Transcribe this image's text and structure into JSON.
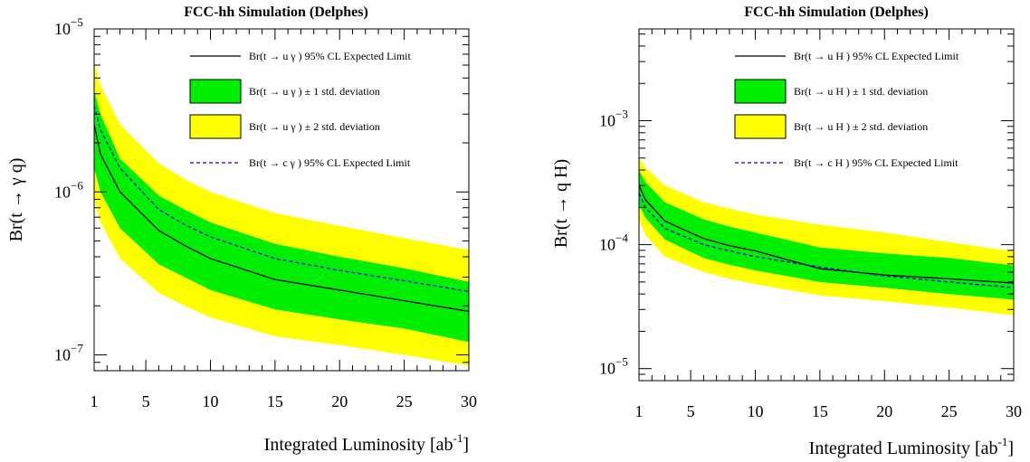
{
  "chart_data": [
    {
      "type": "line",
      "title": "FCC-hh Simulation (Delphes)",
      "xlabel": "Integrated Luminosity [ab",
      "xlabel_sup": "-1",
      "xlabel_end": "]",
      "ylabel": "Br(t → γ q)",
      "xlim": [
        1,
        30
      ],
      "ylim": [
        8e-08,
        1e-05
      ],
      "yscale": "log",
      "x_ticks": [
        1,
        5,
        10,
        15,
        20,
        25,
        30
      ],
      "y_ticks": [
        {
          "mant": "10",
          "exp": "−7",
          "value": 1e-07
        },
        {
          "mant": "10",
          "exp": "−6",
          "value": 1e-06
        },
        {
          "mant": "10",
          "exp": "−5",
          "value": 1e-05
        }
      ],
      "x": [
        1,
        1.5,
        3,
        6,
        8,
        10,
        15,
        20,
        25,
        30
      ],
      "legend_position": "top-right",
      "legend": [
        {
          "kind": "line",
          "label": "Br(t → u γ ) 95% CL Expected Limit",
          "color": "#000000"
        },
        {
          "kind": "box",
          "label": "Br(t → u γ ) ± 1 std. deviation",
          "color": "#00ee00"
        },
        {
          "kind": "box",
          "label": "Br(t → u γ ) ± 2 std. deviation",
          "color": "#ffff00"
        },
        {
          "kind": "dash",
          "label": "Br(t → c γ ) 95% CL Expected Limit",
          "color": "#0000ff"
        }
      ],
      "band_2sigma": {
        "color": "#ffff00",
        "upper": [
          6.2e-06,
          4.5e-06,
          2.6e-06,
          1.5e-06,
          1.2e-06,
          1e-06,
          7.4e-07,
          6.2e-07,
          5.2e-07,
          4.4e-07
        ],
        "lower": [
          9e-07,
          6.5e-07,
          3.9e-07,
          2.4e-07,
          2e-07,
          1.7e-07,
          1.3e-07,
          1.15e-07,
          1e-07,
          8.6e-08
        ]
      },
      "band_1sigma": {
        "color": "#00ee00",
        "upper": [
          4.2e-06,
          3e-06,
          1.6e-06,
          9.5e-07,
          7.8e-07,
          6.5e-07,
          4.8e-07,
          4e-07,
          3.4e-07,
          2.8e-07
        ],
        "lower": [
          1.4e-06,
          1e-06,
          6e-07,
          3.6e-07,
          3e-07,
          2.5e-07,
          1.9e-07,
          1.65e-07,
          1.45e-07,
          1.2e-07
        ]
      },
      "series": [
        {
          "name": "Br(t → u γ ) 95% CL Expected Limit",
          "style": "solid",
          "color": "#000000",
          "values": [
            2.6e-06,
            1.7e-06,
            1e-06,
            5.8e-07,
            4.7e-07,
            3.9e-07,
            2.9e-07,
            2.5e-07,
            2.15e-07,
            1.85e-07
          ]
        },
        {
          "name": "Br(t → c γ ) 95% CL Expected Limit",
          "style": "dashed",
          "color": "#0000ff",
          "values": [
            3.4e-06,
            2.4e-06,
            1.4e-06,
            7.8e-07,
            6.3e-07,
            5.3e-07,
            3.9e-07,
            3.3e-07,
            2.85e-07,
            2.45e-07
          ]
        }
      ]
    },
    {
      "type": "line",
      "title": "FCC-hh Simulation (Delphes)",
      "xlabel": "Integrated Luminosity [ab",
      "xlabel_sup": "-1",
      "xlabel_end": "]",
      "ylabel": "Br(t → q H)",
      "xlim": [
        1,
        30
      ],
      "ylim": [
        8e-06,
        0.0055
      ],
      "yscale": "log",
      "x_ticks": [
        1,
        5,
        10,
        15,
        20,
        25,
        30
      ],
      "y_ticks": [
        {
          "mant": "10",
          "exp": "−5",
          "value": 1e-05
        },
        {
          "mant": "10",
          "exp": "−4",
          "value": 0.0001
        },
        {
          "mant": "10",
          "exp": "−3",
          "value": 0.001
        }
      ],
      "x": [
        1,
        1.5,
        3,
        6,
        8,
        10,
        15,
        20,
        25,
        30
      ],
      "legend_position": "top-right",
      "legend": [
        {
          "kind": "line",
          "label": "Br(t → u H ) 95% CL Expected Limit",
          "color": "#000000"
        },
        {
          "kind": "box",
          "label": "Br(t → u H ) ± 1 std. deviation",
          "color": "#00ee00"
        },
        {
          "kind": "box",
          "label": "Br(t → u H ) ± 2 std. deviation",
          "color": "#ffff00"
        },
        {
          "kind": "dash",
          "label": "Br(t → c H ) 95% CL Expected Limit",
          "color": "#0000ff"
        }
      ],
      "band_2sigma": {
        "color": "#ffff00",
        "upper": [
          0.0005,
          0.00042,
          0.0003,
          0.00022,
          0.000195,
          0.000175,
          0.000145,
          0.000125,
          0.000105,
          8.8e-05
        ],
        "lower": [
          0.00016,
          0.00012,
          8e-05,
          6e-05,
          5.3e-05,
          4.8e-05,
          3.9e-05,
          3.5e-05,
          3.1e-05,
          2.7e-05
        ]
      },
      "band_1sigma": {
        "color": "#00ee00",
        "upper": [
          0.0004,
          0.00032,
          0.00022,
          0.00016,
          0.00014,
          0.000125,
          9.5e-05,
          8.5e-05,
          7.8e-05,
          6.8e-05
        ],
        "lower": [
          0.00021,
          0.000165,
          0.00011,
          7.8e-05,
          6.9e-05,
          6.2e-05,
          5e-05,
          4.5e-05,
          4e-05,
          3.6e-05
        ]
      },
      "series": [
        {
          "name": "Br(t → u H ) 95% CL Expected Limit",
          "style": "solid",
          "color": "#000000",
          "values": [
            0.0003,
            0.00023,
            0.000155,
            0.000112,
            9.8e-05,
            8.9e-05,
            6.4e-05,
            5.7e-05,
            5.3e-05,
            4.9e-05
          ]
        },
        {
          "name": "Br(t → c H ) 95% CL Expected Limit",
          "style": "dashed",
          "color": "#0000ff",
          "values": [
            0.00026,
            0.0002,
            0.000135,
            0.0001,
            8.9e-05,
            8e-05,
            6.6e-05,
            5.6e-05,
            5e-05,
            4.5e-05
          ]
        }
      ]
    }
  ]
}
